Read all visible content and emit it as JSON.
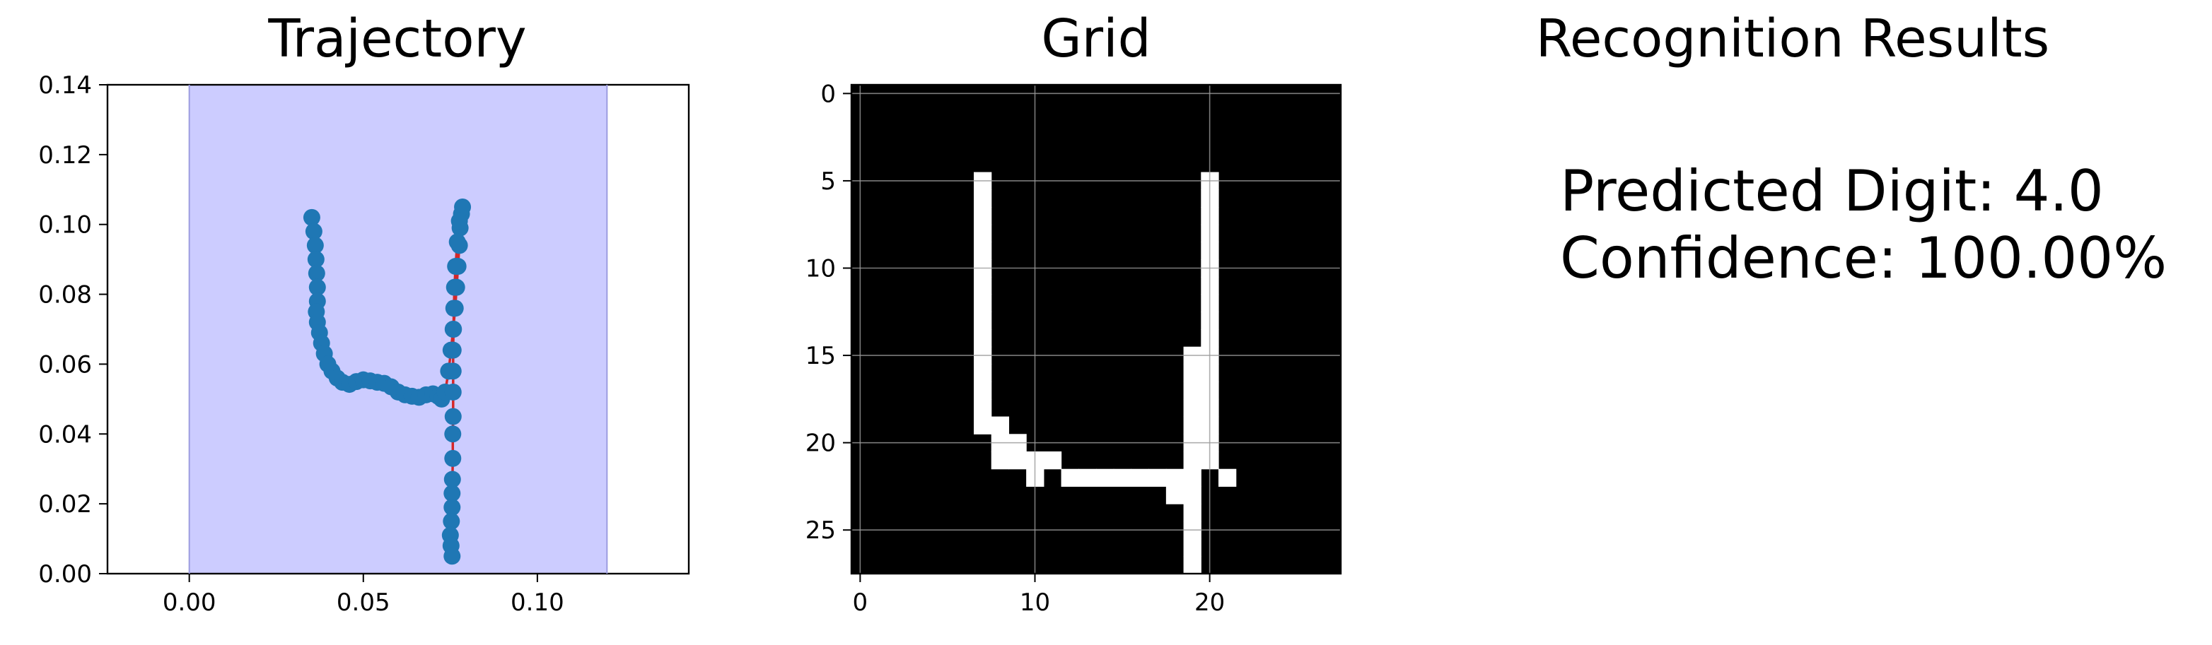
{
  "colors": {
    "background": "#ffffff",
    "span_fill": "#ccccff",
    "span_edge": "#9c9ce0",
    "point_color": "#1f77b4",
    "line_color": "#d62728",
    "grid_bg": "#000000",
    "grid_on": "#ffffff",
    "grid_lines": "#9a9a9a"
  },
  "chart_data": [
    {
      "type": "scatter",
      "title": "Trajectory",
      "xlabel": "",
      "ylabel": "",
      "xlim": [
        -0.0235,
        0.1435
      ],
      "ylim": [
        0,
        0.14
      ],
      "xticks": [
        0.0,
        0.05,
        0.1
      ],
      "xtick_labels": [
        "0.00",
        "0.05",
        "0.10"
      ],
      "yticks": [
        0.0,
        0.02,
        0.04,
        0.06,
        0.08,
        0.1,
        0.12,
        0.14
      ],
      "ytick_labels": [
        "0.00",
        "0.02",
        "0.04",
        "0.06",
        "0.08",
        "0.10",
        "0.12",
        "0.14"
      ],
      "grid": false,
      "shaded_span": {
        "x_start": 0.0,
        "x_end": 0.12
      },
      "series": [
        {
          "style": "markers+line",
          "points": [
            [
              0.0352,
              0.102
            ],
            [
              0.0358,
              0.098
            ],
            [
              0.0362,
              0.094
            ],
            [
              0.0364,
              0.09
            ],
            [
              0.0366,
              0.086
            ],
            [
              0.0368,
              0.082
            ],
            [
              0.0368,
              0.078
            ],
            [
              0.0365,
              0.075
            ],
            [
              0.0368,
              0.072
            ],
            [
              0.0374,
              0.069
            ],
            [
              0.038,
              0.066
            ],
            [
              0.0388,
              0.063
            ],
            [
              0.0398,
              0.06
            ],
            [
              0.041,
              0.058
            ],
            [
              0.0425,
              0.056
            ],
            [
              0.044,
              0.0548
            ],
            [
              0.046,
              0.0542
            ],
            [
              0.048,
              0.055
            ],
            [
              0.05,
              0.0555
            ],
            [
              0.052,
              0.0552
            ],
            [
              0.054,
              0.0548
            ],
            [
              0.056,
              0.0545
            ],
            [
              0.058,
              0.0535
            ],
            [
              0.06,
              0.052
            ],
            [
              0.062,
              0.0512
            ],
            [
              0.064,
              0.0508
            ],
            [
              0.066,
              0.0505
            ],
            [
              0.068,
              0.0512
            ],
            [
              0.07,
              0.0515
            ],
            [
              0.0715,
              0.0508
            ],
            [
              0.0725,
              0.05
            ],
            [
              0.0735,
              0.052
            ],
            [
              0.0745,
              0.058
            ],
            [
              0.0752,
              0.064
            ],
            [
              0.0758,
              0.07
            ],
            [
              0.0764,
              0.076
            ],
            [
              0.0768,
              0.082
            ],
            [
              0.0772,
              0.088
            ],
            [
              0.0776,
              0.094
            ],
            [
              0.0778,
              0.099
            ],
            [
              0.0782,
              0.103
            ],
            [
              0.0785,
              0.105
            ],
            [
              0.0776,
              0.101
            ],
            [
              0.077,
              0.095
            ],
            [
              0.0765,
              0.088
            ],
            [
              0.0762,
              0.082
            ],
            [
              0.076,
              0.076
            ],
            [
              0.0759,
              0.07
            ],
            [
              0.0758,
              0.064
            ],
            [
              0.0758,
              0.058
            ],
            [
              0.0758,
              0.052
            ],
            [
              0.0758,
              0.045
            ],
            [
              0.0757,
              0.04
            ],
            [
              0.0757,
              0.033
            ],
            [
              0.0756,
              0.027
            ],
            [
              0.0755,
              0.023
            ],
            [
              0.0755,
              0.019
            ],
            [
              0.0753,
              0.015
            ],
            [
              0.075,
              0.011
            ],
            [
              0.0752,
              0.008
            ],
            [
              0.0755,
              0.005
            ]
          ]
        }
      ]
    },
    {
      "type": "heatmap",
      "title": "Grid",
      "xlabel": "",
      "ylabel": "",
      "xlim": [
        -0.5,
        27.5
      ],
      "ylim": [
        27.5,
        -0.5
      ],
      "xticks": [
        0,
        10,
        20
      ],
      "xtick_labels": [
        "0",
        "10",
        "20"
      ],
      "yticks": [
        0,
        5,
        10,
        15,
        20,
        25
      ],
      "ytick_labels": [
        "0",
        "5",
        "10",
        "15",
        "20",
        "25"
      ],
      "grid": true,
      "rows": 28,
      "cols": 28,
      "on_cells_by_row": [
        [],
        [],
        [],
        [],
        [],
        [
          7,
          20
        ],
        [
          7,
          20
        ],
        [
          7,
          20
        ],
        [
          7,
          20
        ],
        [
          7,
          20
        ],
        [
          7,
          20
        ],
        [
          7,
          20
        ],
        [
          7,
          20
        ],
        [
          7,
          20
        ],
        [
          7,
          20
        ],
        [
          7,
          19,
          20
        ],
        [
          7,
          19,
          20
        ],
        [
          7,
          19,
          20
        ],
        [
          7,
          19,
          20
        ],
        [
          7,
          8,
          19,
          20
        ],
        [
          8,
          9,
          19,
          20
        ],
        [
          8,
          9,
          10,
          11,
          19,
          20
        ],
        [
          10,
          12,
          13,
          14,
          15,
          16,
          17,
          18,
          19,
          21
        ],
        [
          18,
          19
        ],
        [
          19
        ],
        [
          19
        ],
        [
          19
        ],
        [
          19
        ]
      ]
    }
  ],
  "results": {
    "title": "Recognition Results",
    "line1": "Predicted Digit: 4.0",
    "line2": "Confidence: 100.00%"
  }
}
